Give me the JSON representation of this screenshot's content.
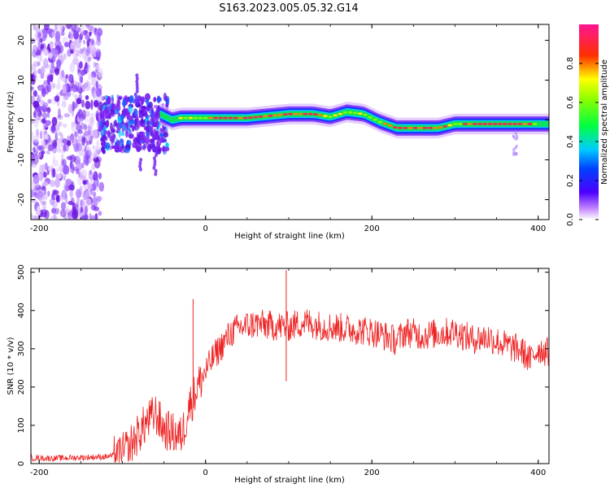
{
  "title": "S163.2023.005.05.32.G14",
  "chart_data": [
    {
      "type": "heatmap",
      "xlabel": "Height of straight line (km)",
      "ylabel": "Frequency (Hz)",
      "xlim": [
        -210,
        413
      ],
      "ylim": [
        -25,
        24
      ],
      "xticks": [
        -200,
        0,
        200,
        400
      ],
      "yticks": [
        -20,
        -10,
        0,
        10,
        20
      ],
      "colorbar": {
        "label": "Normalized spectral amplitude",
        "range": [
          0,
          1
        ],
        "ticks": [
          "0.0",
          "0.2",
          "0.4",
          "0.6",
          "0.8"
        ],
        "colormap": [
          "#ffffff",
          "#8a2be2",
          "#0000ff",
          "#00ccff",
          "#00ff00",
          "#ffff00",
          "#ff0000",
          "#ff1493"
        ]
      },
      "ridge": {
        "x": [
          -120,
          -90,
          -60,
          -40,
          -30,
          0,
          50,
          100,
          130,
          150,
          170,
          190,
          210,
          230,
          280,
          300,
          350,
          400,
          413
        ],
        "freq": [
          0,
          1,
          2,
          0,
          0.5,
          0.5,
          0.5,
          1.5,
          1.5,
          0.8,
          2,
          1.5,
          -0.5,
          -2,
          -2,
          -1,
          -1,
          -1,
          -1
        ]
      }
    },
    {
      "type": "line",
      "xlabel": "Height of straight line (km)",
      "ylabel": "SNR (10 * v/v)",
      "xlim": [
        -210,
        413
      ],
      "ylim": [
        0,
        510
      ],
      "xticks": [
        -200,
        0,
        200,
        400
      ],
      "yticks": [
        0,
        100,
        200,
        300,
        400,
        500
      ],
      "color": "#ee2222",
      "series": [
        {
          "x": [
            -210,
            -180,
            -150,
            -120,
            -100,
            -90,
            -80,
            -70,
            -60,
            -50,
            -40,
            -30,
            -25,
            -20,
            -15,
            -10,
            0,
            10,
            20,
            30,
            40,
            60,
            80,
            100,
            120,
            140,
            160,
            180,
            200,
            220,
            230,
            240,
            260,
            280,
            300,
            320,
            340,
            360,
            380,
            390,
            400,
            413
          ],
          "values": [
            15,
            14,
            16,
            18,
            25,
            50,
            80,
            110,
            130,
            90,
            80,
            70,
            100,
            150,
            170,
            200,
            240,
            280,
            310,
            340,
            355,
            365,
            360,
            358,
            370,
            360,
            355,
            350,
            345,
            330,
            320,
            345,
            335,
            340,
            345,
            325,
            330,
            310,
            295,
            270,
            300,
            290
          ]
        }
      ],
      "spikes": [
        {
          "x": -15,
          "value": 430
        },
        {
          "x": 97,
          "value": 505
        },
        {
          "x": 97,
          "value": 215
        }
      ]
    }
  ]
}
